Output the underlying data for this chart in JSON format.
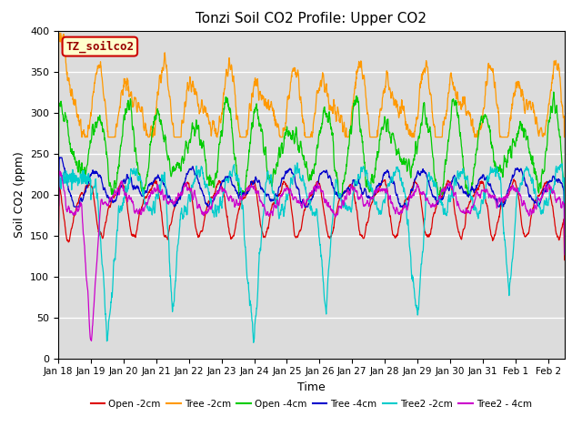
{
  "title": "Tonzi Soil CO2 Profile: Upper CO2",
  "xlabel": "Time",
  "ylabel": "Soil CO2 (ppm)",
  "ylim": [
    0,
    400
  ],
  "xlim_days": [
    0,
    15.5
  ],
  "x_tick_labels": [
    "Jan 18",
    "Jan 19",
    "Jan 20",
    "Jan 21",
    "Jan 22",
    "Jan 23",
    "Jan 24",
    "Jan 25",
    "Jan 26",
    "Jan 27",
    "Jan 28",
    "Jan 29",
    "Jan 30",
    "Jan 31",
    "Feb 1",
    "Feb 2"
  ],
  "x_tick_positions": [
    0,
    1,
    2,
    3,
    4,
    5,
    6,
    7,
    8,
    9,
    10,
    11,
    12,
    13,
    14,
    15
  ],
  "legend_label": "TZ_soilco2",
  "legend_box_color": "#ffffcc",
  "legend_box_edge": "#cc0000",
  "legend_label_color": "#990000",
  "bg_color": "#dcdcdc",
  "grid_color": "#c8c8c8",
  "series": [
    {
      "name": "Open -2cm",
      "color": "#dd0000"
    },
    {
      "name": "Tree -2cm",
      "color": "#ff9900"
    },
    {
      "name": "Open -4cm",
      "color": "#00cc00"
    },
    {
      "name": "Tree -4cm",
      "color": "#0000cc"
    },
    {
      "name": "Tree2 -2cm",
      "color": "#00cccc"
    },
    {
      "name": "Tree2 - 4cm",
      "color": "#cc00cc"
    }
  ],
  "figsize": [
    6.4,
    4.8
  ],
  "dpi": 100
}
